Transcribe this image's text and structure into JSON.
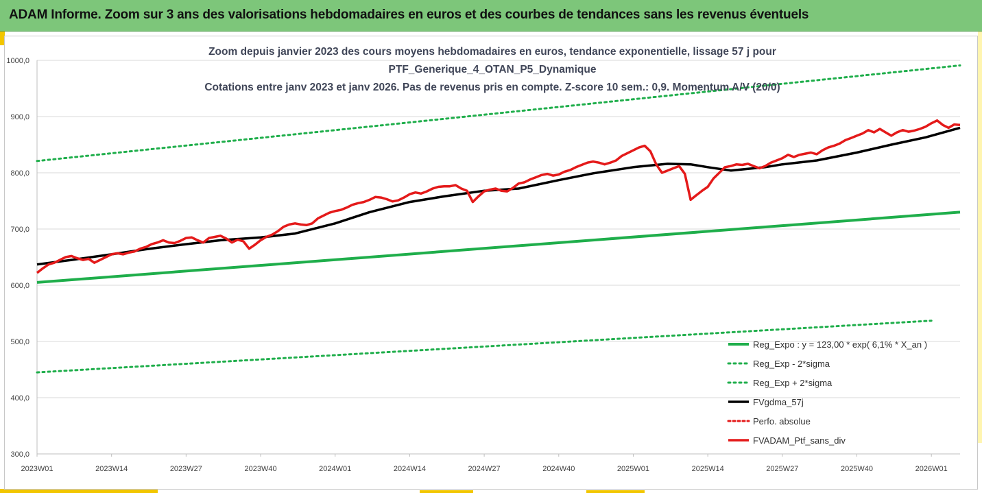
{
  "banner": {
    "title": "ADAM Informe. Zoom sur 3 ans des valorisations hebdomadaires en euros et des courbes de tendances sans les revenus éventuels"
  },
  "colors": {
    "banner_bg": "#7dc67a",
    "accent_yellow": "#f2c600",
    "reg_expo": "#1fae4b",
    "sigma": "#1fae4b",
    "gdma": "#000000",
    "perfo": "#e41a1a",
    "ptf": "#e41a1a",
    "title": "#404658"
  },
  "chart_data": {
    "type": "line",
    "title_lines": [
      "Zoom depuis janvier 2023 des cours moyens hebdomadaires  en euros, tendance exponentielle, lissage 57 j pour",
      "PTF_Generique_4_OTAN_P5_Dynamique",
      "Cotations entre janv 2023 et janv 2026. Pas de revenus pris en compte. Z-score 10 sem.: 0,9. Momentum A/V (20/0)"
    ],
    "ylim": [
      300,
      1000
    ],
    "yticks": [
      "300,0",
      "400,0",
      "500,0",
      "600,0",
      "700,0",
      "800,0",
      "900,0",
      "1000,0"
    ],
    "xticks": [
      "2023W01",
      "2023W14",
      "2023W27",
      "2023W40",
      "2024W01",
      "2024W14",
      "2024W27",
      "2024W40",
      "2025W01",
      "2025W14",
      "2025W27",
      "2025W40",
      "2026W01"
    ],
    "x_range_weeks": [
      0,
      161
    ],
    "grid": "horizontal",
    "legend_position": "bottom-right",
    "series": [
      {
        "name": "Reg_Expo : y = 123,00 * exp( 6,1% *  X_an )",
        "style": "solid-green",
        "x": [
          0,
          161
        ],
        "values": [
          605,
          730
        ]
      },
      {
        "name": "Reg_Exp - 2*sigma",
        "style": "dotted-green",
        "x": [
          0,
          156
        ],
        "values": [
          445,
          537
        ]
      },
      {
        "name": "Reg_Exp + 2*sigma",
        "style": "dotted-green",
        "x": [
          0,
          161
        ],
        "values": [
          821,
          991
        ]
      },
      {
        "name": "FVgdma_57j",
        "style": "solid-black",
        "x": [
          0,
          6,
          13,
          19,
          26,
          32,
          39,
          45,
          52,
          58,
          65,
          71,
          78,
          84,
          91,
          97,
          104,
          110,
          114,
          117,
          121,
          127,
          130,
          136,
          143,
          149,
          155,
          161
        ],
        "values": [
          637,
          645,
          655,
          664,
          673,
          680,
          685,
          692,
          710,
          730,
          748,
          758,
          768,
          772,
          787,
          799,
          810,
          816,
          815,
          810,
          804,
          810,
          815,
          822,
          836,
          850,
          863,
          880
        ]
      },
      {
        "name": "Perfo. absolue",
        "style": "dotted-red",
        "x": [],
        "values": []
      },
      {
        "name": "FVADAM_Ptf_sans_div",
        "style": "solid-red",
        "x": [
          0,
          1,
          2,
          3,
          4,
          5,
          6,
          7,
          8,
          9,
          10,
          11,
          12,
          13,
          14,
          15,
          16,
          17,
          18,
          19,
          20,
          21,
          22,
          23,
          24,
          25,
          26,
          27,
          28,
          29,
          30,
          31,
          32,
          33,
          34,
          35,
          36,
          37,
          38,
          39,
          40,
          41,
          42,
          43,
          44,
          45,
          46,
          47,
          48,
          49,
          50,
          51,
          52,
          53,
          54,
          55,
          56,
          57,
          58,
          59,
          60,
          61,
          62,
          63,
          64,
          65,
          66,
          67,
          68,
          69,
          70,
          71,
          72,
          73,
          74,
          75,
          76,
          77,
          78,
          79,
          80,
          81,
          82,
          83,
          84,
          85,
          86,
          87,
          88,
          89,
          90,
          91,
          92,
          93,
          94,
          95,
          96,
          97,
          98,
          99,
          100,
          101,
          102,
          103,
          104,
          105,
          106,
          107,
          108,
          109,
          110,
          111,
          112,
          113,
          114,
          115,
          116,
          117,
          118,
          119,
          120,
          121,
          122,
          123,
          124,
          125,
          126,
          127,
          128,
          129,
          130,
          131,
          132,
          133,
          134,
          135,
          136,
          137,
          138,
          139,
          140,
          141,
          142,
          143,
          144,
          145,
          146,
          147,
          148,
          149,
          150,
          151,
          152,
          153,
          154,
          155,
          156,
          157,
          158,
          159,
          160,
          161
        ],
        "values": [
          622,
          630,
          637,
          640,
          645,
          650,
          652,
          648,
          645,
          647,
          640,
          645,
          650,
          655,
          657,
          655,
          658,
          660,
          665,
          668,
          673,
          676,
          680,
          676,
          675,
          679,
          684,
          685,
          680,
          676,
          684,
          686,
          688,
          683,
          676,
          681,
          678,
          665,
          672,
          680,
          686,
          690,
          696,
          704,
          708,
          710,
          708,
          707,
          710,
          719,
          724,
          729,
          732,
          734,
          738,
          743,
          746,
          748,
          752,
          757,
          756,
          753,
          749,
          751,
          756,
          762,
          765,
          763,
          767,
          772,
          775,
          776,
          776,
          778,
          772,
          768,
          748,
          758,
          767,
          770,
          772,
          768,
          767,
          773,
          781,
          783,
          788,
          792,
          796,
          798,
          795,
          797,
          802,
          805,
          810,
          814,
          818,
          820,
          818,
          815,
          818,
          822,
          830,
          835,
          840,
          845,
          848,
          838,
          815,
          800,
          804,
          808,
          812,
          798,
          752,
          760,
          768,
          775,
          790,
          800,
          810,
          812,
          815,
          814,
          816,
          812,
          808,
          812,
          818,
          822,
          826,
          832,
          828,
          832,
          834,
          836,
          833,
          840,
          845,
          848,
          852,
          858,
          862,
          866,
          870,
          876,
          872,
          878,
          872,
          866,
          872,
          876,
          873,
          875,
          878,
          882,
          888,
          893,
          885,
          880,
          886,
          885
        ]
      }
    ]
  }
}
